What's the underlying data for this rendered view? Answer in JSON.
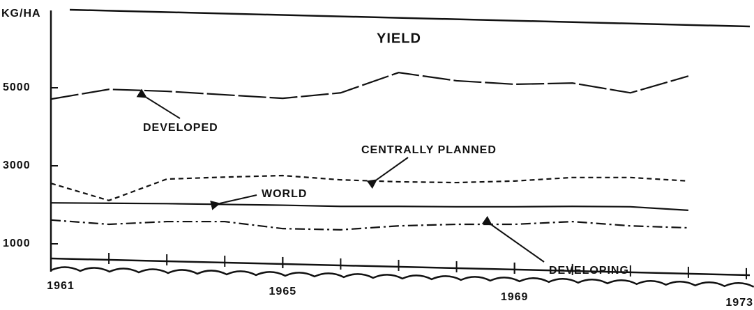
{
  "chart_data": {
    "type": "line",
    "title": "YIELD",
    "y_label": "KG/HA",
    "x": [
      1961,
      1962,
      1963,
      1964,
      1965,
      1966,
      1967,
      1968,
      1969,
      1970,
      1971,
      1972
    ],
    "xlim": [
      1961,
      1973
    ],
    "xticks": [
      1961,
      1965,
      1969,
      1973
    ],
    "ylim": [
      0,
      7000
    ],
    "yticks": [
      1000,
      3000,
      5000
    ],
    "grid": false,
    "series": [
      {
        "name": "DEVELOPED",
        "color": "#111111",
        "dash": "long-dash",
        "values": [
          4710,
          4960,
          4910,
          4820,
          4730,
          4870,
          5390,
          5180,
          5090,
          5120,
          4870,
          5300
        ]
      },
      {
        "name": "CENTRALLY PLANNED",
        "color": "#111111",
        "dash": "dashed",
        "values": [
          2550,
          2110,
          2660,
          2710,
          2750,
          2640,
          2590,
          2570,
          2610,
          2700,
          2700,
          2610
        ]
      },
      {
        "name": "WORLD",
        "color": "#111111",
        "dash": "solid",
        "values": [
          2050,
          2040,
          2030,
          2010,
          1990,
          1960,
          1960,
          1950,
          1950,
          1960,
          1950,
          1860
        ]
      },
      {
        "name": "DEVELOPING",
        "color": "#111111",
        "dash": "dash-dot",
        "values": [
          1610,
          1500,
          1570,
          1570,
          1390,
          1360,
          1460,
          1500,
          1500,
          1570,
          1460,
          1410
        ]
      }
    ]
  }
}
